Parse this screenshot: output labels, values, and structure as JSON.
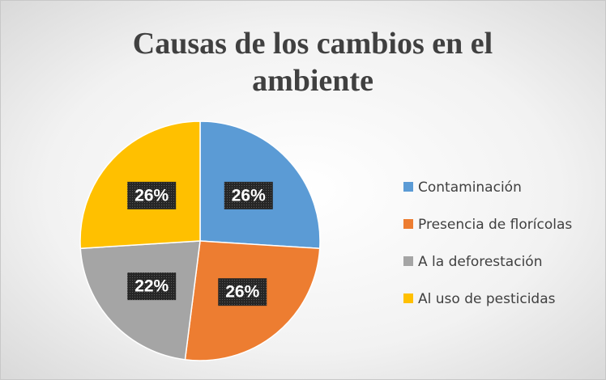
{
  "chart_data": {
    "type": "pie",
    "title": "Causas de los cambios en el ambiente",
    "categories": [
      "Contaminación",
      "Presencia de florícolas",
      "A la deforestación",
      "Al uso de pesticidas"
    ],
    "values": [
      26,
      26,
      22,
      26
    ],
    "value_labels": [
      "26%",
      "26%",
      "22%",
      "26%"
    ],
    "colors": [
      "#5b9bd5",
      "#ed7d31",
      "#a5a5a5",
      "#ffc000"
    ],
    "legend": "right"
  }
}
